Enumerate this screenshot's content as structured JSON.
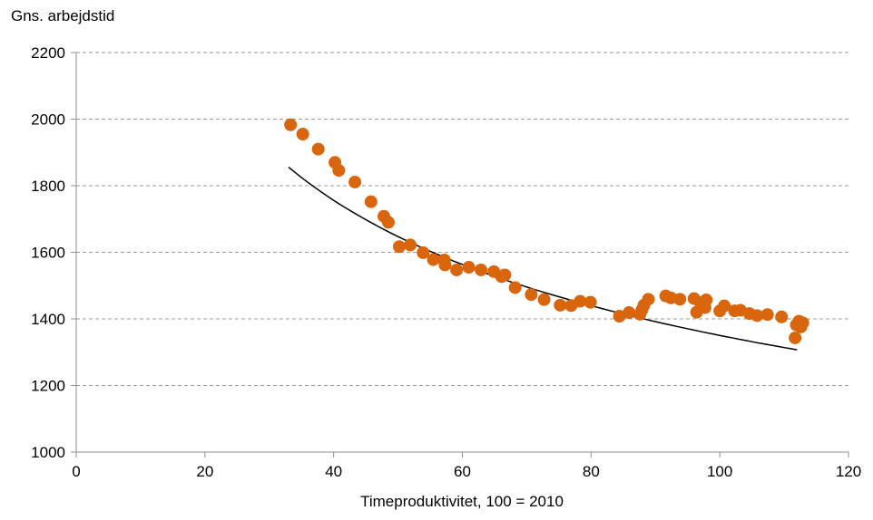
{
  "chart_data": {
    "type": "scatter",
    "ylabel": "Gns. arbejdstid",
    "xlabel": "Timeproduktivitet, 100 = 2010",
    "xlim": [
      0,
      120
    ],
    "ylim": [
      1000,
      2200
    ],
    "xticks": [
      0,
      20,
      40,
      60,
      80,
      100,
      120
    ],
    "yticks": [
      1000,
      1200,
      1400,
      1600,
      1800,
      2000,
      2200
    ],
    "grid": "horizontal dashed",
    "marker_color": "#D9650D",
    "trend_color": "#000000",
    "trendline": {
      "type": "power",
      "x": [
        33,
        40,
        50,
        60,
        70,
        80,
        90,
        100,
        112
      ],
      "y": [
        1873,
        1766,
        1646,
        1555,
        1482,
        1423,
        1373,
        1330,
        1362
      ]
    },
    "series": [
      {
        "points": [
          [
            33.3,
            1983
          ],
          [
            35.2,
            1955
          ],
          [
            37.6,
            1910
          ],
          [
            40.2,
            1870
          ],
          [
            40.8,
            1846
          ],
          [
            43.3,
            1811
          ],
          [
            45.8,
            1752
          ],
          [
            47.8,
            1708
          ],
          [
            48.5,
            1690
          ],
          [
            50.2,
            1617
          ],
          [
            51.9,
            1622
          ],
          [
            53.9,
            1599
          ],
          [
            55.5,
            1578
          ],
          [
            57.2,
            1577
          ],
          [
            57.3,
            1562
          ],
          [
            59.1,
            1547
          ],
          [
            61.0,
            1555
          ],
          [
            62.9,
            1547
          ],
          [
            64.9,
            1542
          ],
          [
            66.1,
            1527
          ],
          [
            66.6,
            1532
          ],
          [
            68.2,
            1494
          ],
          [
            70.7,
            1473
          ],
          [
            72.7,
            1458
          ],
          [
            75.2,
            1441
          ],
          [
            76.9,
            1440
          ],
          [
            78.3,
            1453
          ],
          [
            79.9,
            1450
          ],
          [
            84.4,
            1408
          ],
          [
            85.9,
            1419
          ],
          [
            87.6,
            1414
          ],
          [
            87.9,
            1427
          ],
          [
            88.2,
            1441
          ],
          [
            88.9,
            1459
          ],
          [
            91.6,
            1469
          ],
          [
            92.4,
            1463
          ],
          [
            93.8,
            1459
          ],
          [
            96.0,
            1461
          ],
          [
            96.4,
            1420
          ],
          [
            97.0,
            1449
          ],
          [
            97.7,
            1434
          ],
          [
            97.9,
            1457
          ],
          [
            100.0,
            1424
          ],
          [
            100.7,
            1439
          ],
          [
            102.3,
            1424
          ],
          [
            103.2,
            1426
          ],
          [
            104.6,
            1416
          ],
          [
            105.8,
            1410
          ],
          [
            107.4,
            1413
          ],
          [
            109.6,
            1406
          ],
          [
            111.7,
            1343
          ],
          [
            111.9,
            1382
          ],
          [
            112.3,
            1393
          ],
          [
            112.6,
            1376
          ],
          [
            112.9,
            1388
          ]
        ]
      }
    ]
  }
}
